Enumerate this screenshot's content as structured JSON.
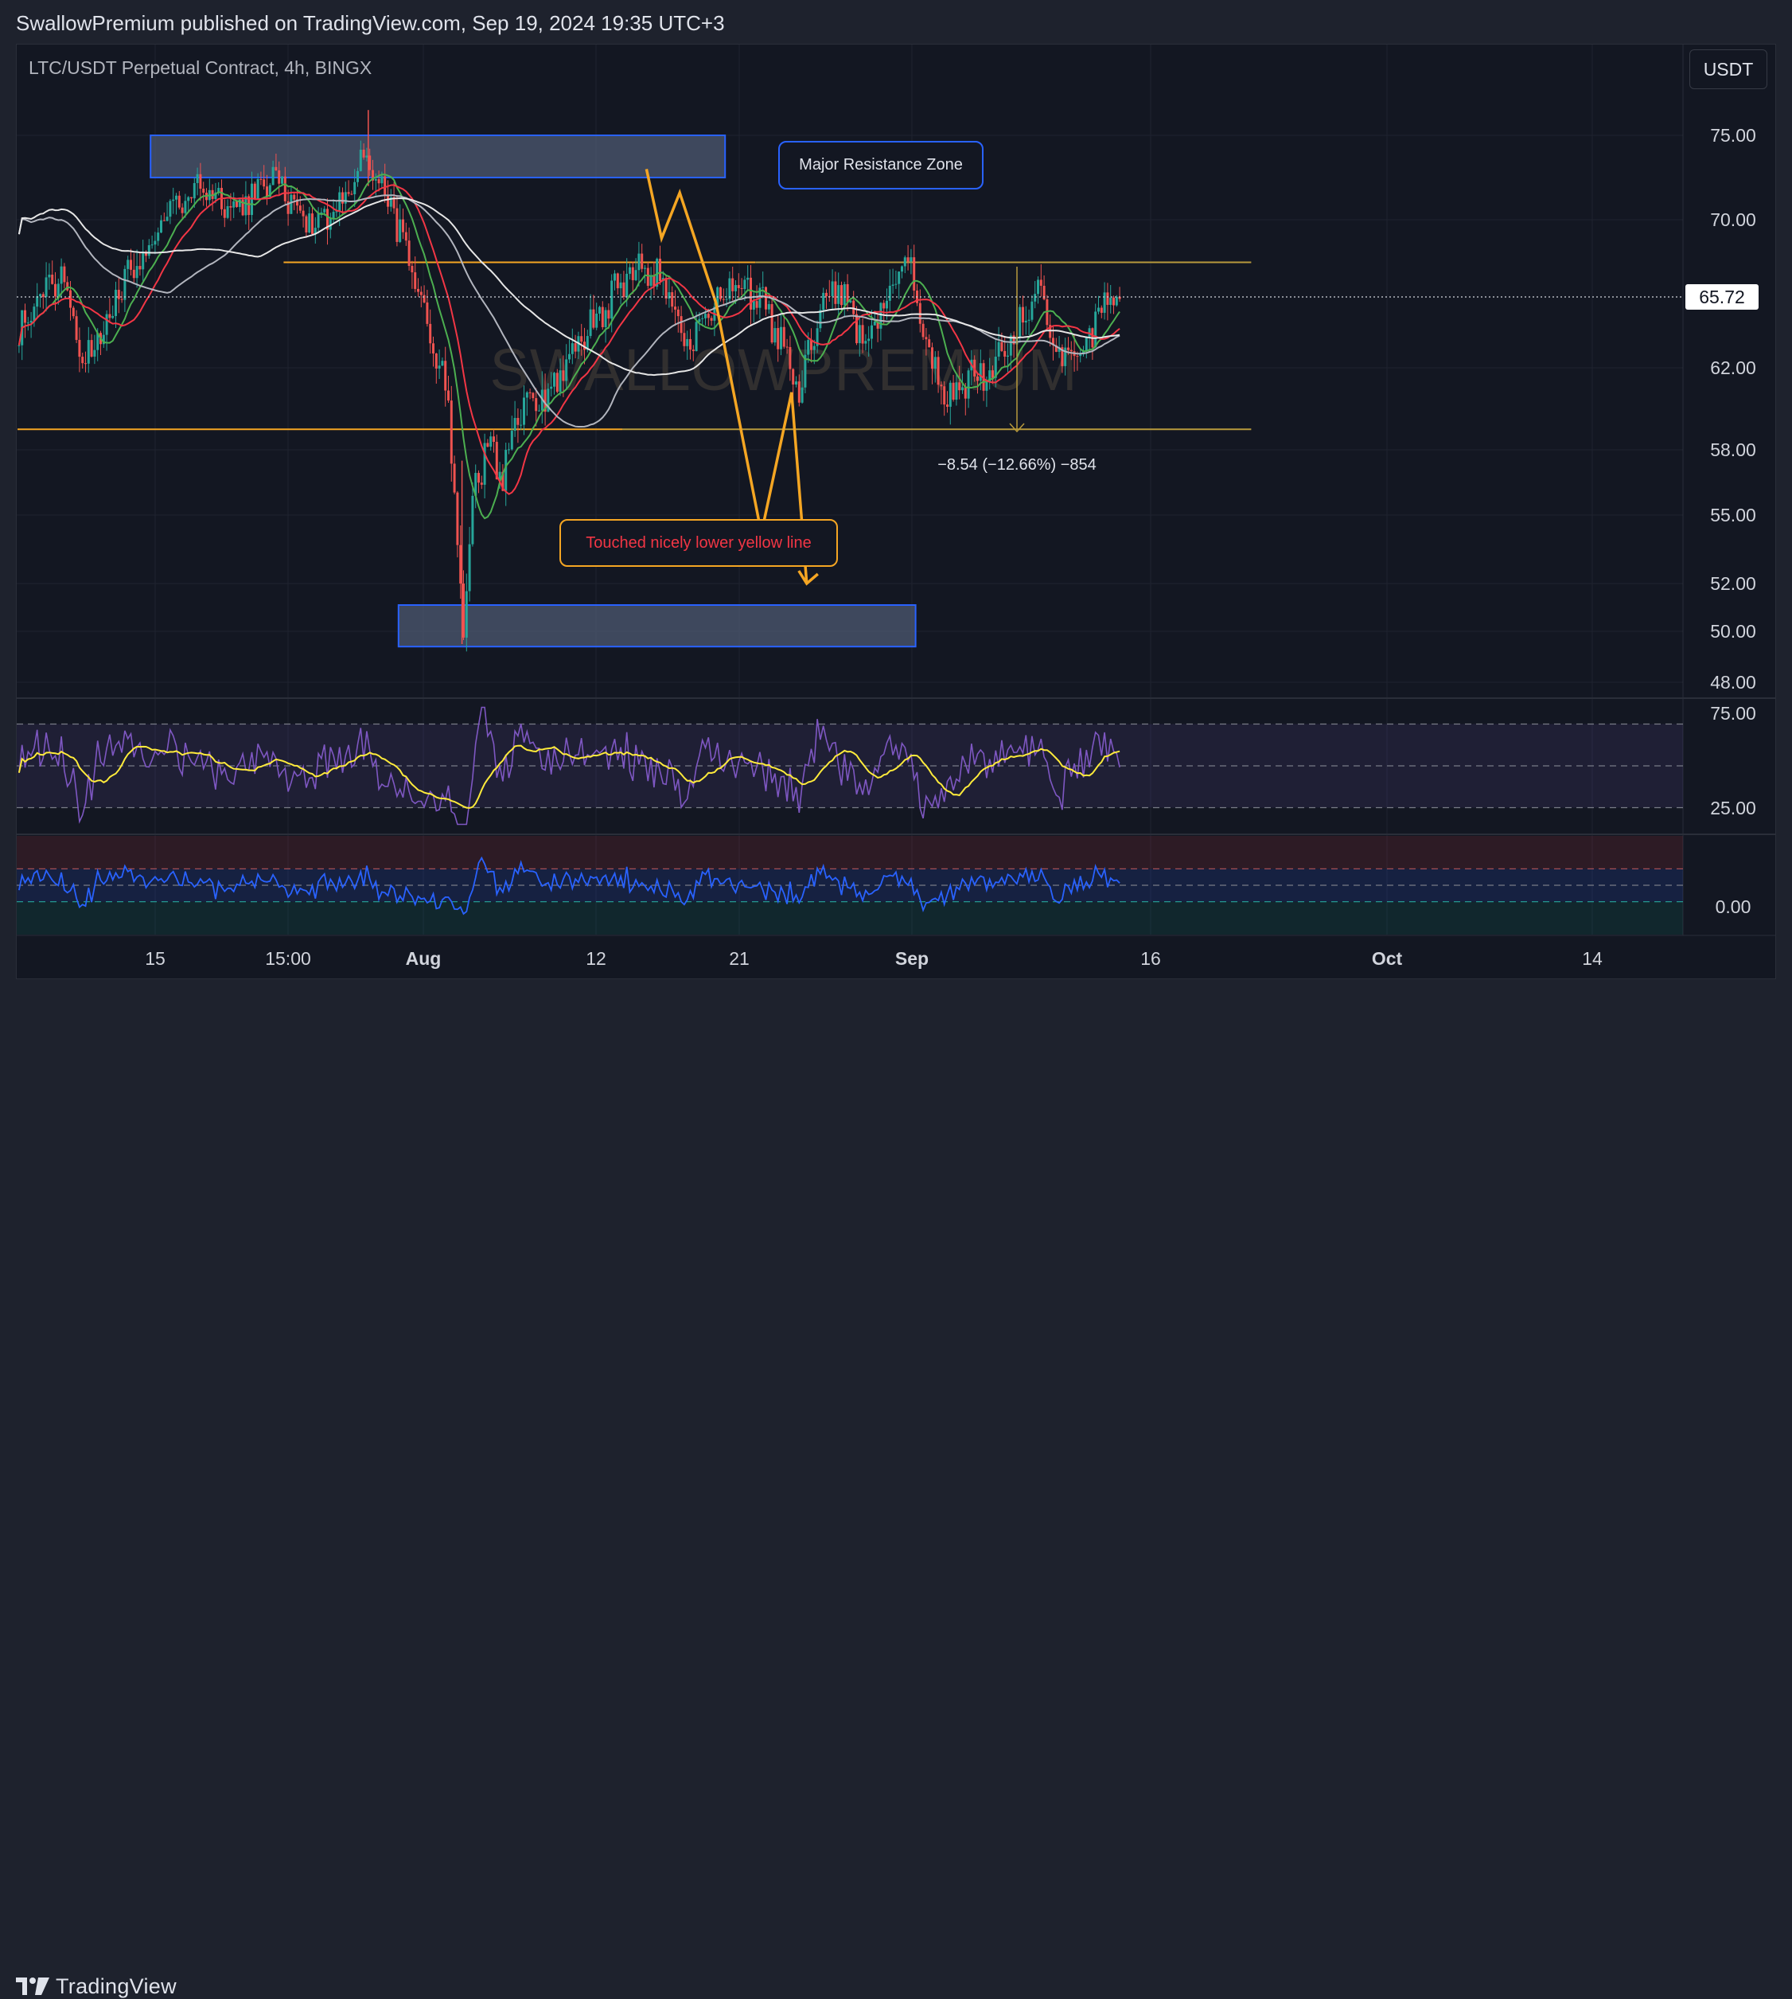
{
  "header": {
    "text": "SwallowPremium published on TradingView.com, Sep 19, 2024 19:35 UTC+3"
  },
  "footer": {
    "logo_text": "TradingView",
    "logo_icon": "tradingview-logo-icon"
  },
  "chart_data": {
    "type": "candlestick",
    "title": "LTC/USDT Perpetual Contract, 4h, BINGX",
    "currency": "USDT",
    "watermark": "SWALLOWPREMIUM",
    "last_price": "65.72",
    "last_price_value": 65.72,
    "y_ticks": [
      "75.00",
      "70.00",
      "62.00",
      "58.00",
      "55.00",
      "52.00",
      "50.00",
      "48.00"
    ],
    "x_ticks": [
      "15",
      "15:00",
      "Aug",
      "12",
      "21",
      "Sep",
      "16",
      "Oct",
      "14"
    ],
    "x_tick_bold": [
      "Aug",
      "Sep",
      "Oct"
    ],
    "price_path": [
      [
        0,
        64.0
      ],
      [
        14,
        67.5
      ],
      [
        22,
        62.0
      ],
      [
        34,
        66.5
      ],
      [
        48,
        70.0
      ],
      [
        60,
        72.0
      ],
      [
        72,
        70.5
      ],
      [
        84,
        72.5
      ],
      [
        96,
        70.0
      ],
      [
        106,
        70.8
      ],
      [
        114,
        73.5
      ],
      [
        122,
        71.5
      ],
      [
        128,
        68.0
      ],
      [
        132,
        65.5
      ],
      [
        138,
        63.0
      ],
      [
        142,
        60.0
      ],
      [
        145,
        54.0
      ],
      [
        147,
        50.0
      ],
      [
        150,
        56.0
      ],
      [
        156,
        58.5
      ],
      [
        160,
        56.5
      ],
      [
        166,
        60.0
      ],
      [
        176,
        61.0
      ],
      [
        190,
        64.5
      ],
      [
        204,
        67.5
      ],
      [
        214,
        66.5
      ],
      [
        220,
        63.0
      ],
      [
        228,
        64.5
      ],
      [
        236,
        67.0
      ],
      [
        246,
        65.5
      ],
      [
        254,
        62.5
      ],
      [
        258,
        60.5
      ],
      [
        264,
        64.5
      ],
      [
        270,
        66.5
      ],
      [
        280,
        63.5
      ],
      [
        288,
        66.0
      ],
      [
        294,
        67.8
      ],
      [
        300,
        63.0
      ],
      [
        306,
        60.5
      ],
      [
        314,
        61.5
      ],
      [
        322,
        62.0
      ],
      [
        330,
        64.0
      ],
      [
        338,
        66.5
      ],
      [
        344,
        62.5
      ],
      [
        350,
        62.5
      ],
      [
        358,
        65.0
      ],
      [
        364,
        65.7
      ]
    ],
    "moving_averages": [
      {
        "name": "",
        "color": "#4caf50",
        "period": 12
      },
      {
        "name": "",
        "color": "#f23645",
        "period": 20
      },
      {
        "name": "",
        "color": "#b2b5be",
        "period": 50
      },
      {
        "name": "",
        "color": "#e6e6e6",
        "period": 80
      }
    ],
    "horizontal_lines": [
      {
        "level": 67.7,
        "from_bar": 88,
        "to_bar": 244,
        "color": "#f5a623"
      },
      {
        "level": 59.0,
        "from_bar": 0,
        "to_bar": 200,
        "color": "#f5a623"
      },
      {
        "level": 67.7,
        "from_bar": 244,
        "to_bar": 408,
        "color": "#b89a3c"
      },
      {
        "level": 59.0,
        "from_bar": 200,
        "to_bar": 408,
        "color": "#b89a3c"
      }
    ],
    "zones": [
      {
        "label": "Major Resistance Zone",
        "from_bar": 44,
        "to_bar": 234,
        "top": 75.0,
        "bottom": 72.5
      },
      {
        "label": "",
        "from_bar": 126,
        "to_bar": 297,
        "top": 51.1,
        "bottom": 49.4
      }
    ],
    "annotation_touched": "Touched nicely lower yellow line",
    "measure_label": "−8.54 (−12.66%) −854",
    "projection_path": [
      [
        208,
        73.0
      ],
      [
        213,
        69.0
      ],
      [
        219,
        71.6
      ],
      [
        231,
        65.5
      ],
      [
        246,
        54.2
      ],
      [
        256,
        60.8
      ],
      [
        261,
        52.0
      ]
    ],
    "rsi": {
      "ticks": [
        "75.00",
        "25.00"
      ],
      "levels": [
        70,
        50,
        30
      ],
      "range": [
        18,
        82
      ],
      "rsi_color": "#7e57c2",
      "signal_color": "#ffeb3b"
    },
    "oscillator2": {
      "ticks": [
        "0.00"
      ],
      "levels": [
        20,
        0
      ],
      "color": "#2962ff"
    }
  }
}
